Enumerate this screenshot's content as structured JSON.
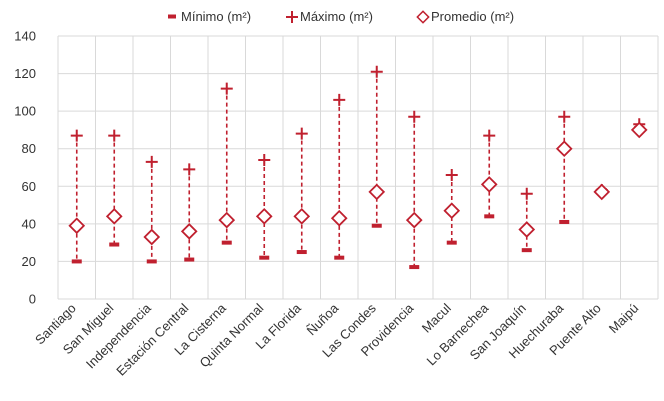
{
  "chart_data": {
    "type": "scatter",
    "title": "",
    "xlabel": "",
    "ylabel": "",
    "ylim": [
      0,
      140
    ],
    "yticks": [
      0,
      20,
      40,
      60,
      80,
      100,
      120,
      140
    ],
    "grid": true,
    "legend_position": "top-center",
    "categories": [
      "Santiago",
      "San Miguel",
      "Independencia",
      "Estación Central",
      "La Cisterna",
      "Quinta Normal",
      "La Florida",
      "Ñuñoa",
      "Las Condes",
      "Providencia",
      "Macul",
      "Lo Barnechea",
      "San Joaquín",
      "Huechuraba",
      "Puente Alto",
      "Maipú"
    ],
    "series": [
      {
        "name": "Mínimo (m²)",
        "marker": "dash",
        "values": [
          20,
          29,
          20,
          21,
          30,
          22,
          25,
          22,
          39,
          17,
          30,
          44,
          26,
          41,
          58,
          91
        ]
      },
      {
        "name": "Máximo (m²)",
        "marker": "plus",
        "values": [
          87,
          87,
          73,
          69,
          112,
          74,
          88,
          106,
          121,
          97,
          66,
          87,
          56,
          97,
          58,
          93
        ]
      },
      {
        "name": "Promedio (m²)",
        "marker": "diamond",
        "values": [
          39,
          44,
          33,
          36,
          42,
          44,
          44,
          43,
          57,
          42,
          47,
          61,
          37,
          80,
          57,
          90
        ]
      }
    ],
    "colors": {
      "accent": "#c0202f",
      "grid": "#d9d9d9",
      "text": "#333333"
    }
  }
}
